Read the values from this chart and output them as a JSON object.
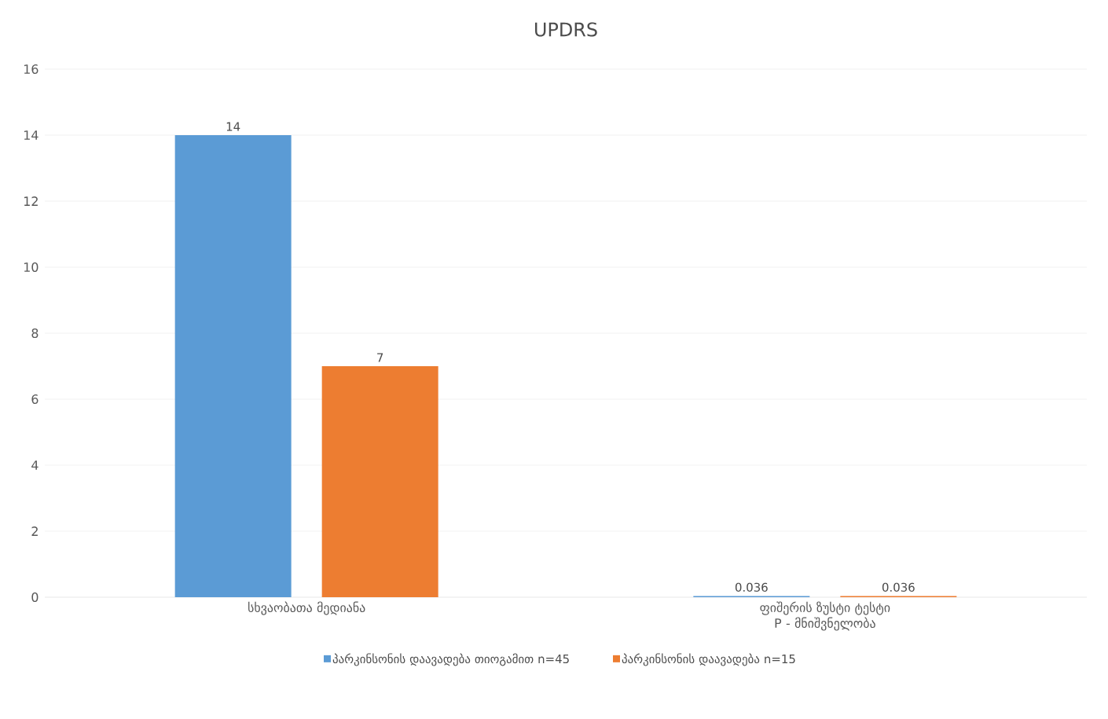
{
  "chart_data": {
    "type": "bar",
    "title": "UPDRS",
    "categories": [
      "სხვაობათა მედიანა",
      "ფიშერის ზუსტი ტესტი P - მნიშვნელობა"
    ],
    "series": [
      {
        "name": "პარკინსონის დაავადება თიოგამით n=45",
        "color": "#5b9bd5",
        "values": [
          14,
          0.036
        ]
      },
      {
        "name": "პარკინსონის დაავადება n=15",
        "color": "#ed7d31",
        "values": [
          7,
          0.036
        ]
      }
    ],
    "ylim": [
      0,
      16
    ],
    "yticks": [
      0,
      2,
      4,
      6,
      8,
      10,
      12,
      14,
      16
    ],
    "grid": "y",
    "legend": "bottom",
    "data_labels": true
  }
}
